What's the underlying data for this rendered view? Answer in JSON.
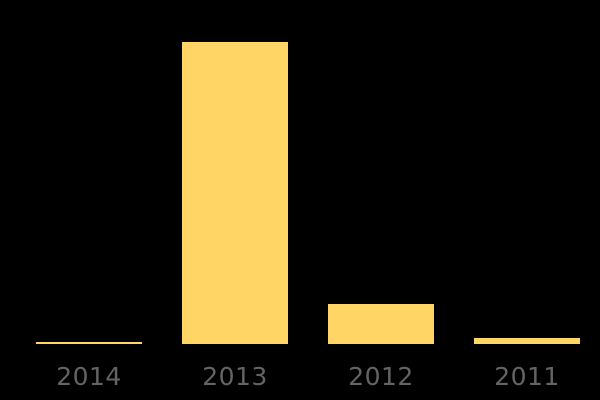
{
  "chart_data": {
    "type": "bar",
    "title": "",
    "xlabel": "",
    "ylabel": "",
    "categories": [
      "2014",
      "2013",
      "2012",
      "2011"
    ],
    "values": [
      2,
      302,
      40,
      6
    ],
    "ylim": [
      0,
      320
    ],
    "grid": false,
    "legend": "none",
    "axis_lines": "none",
    "bar_color": "#FFD666",
    "tick_label_color": "#646464",
    "background_color": "#000000"
  }
}
